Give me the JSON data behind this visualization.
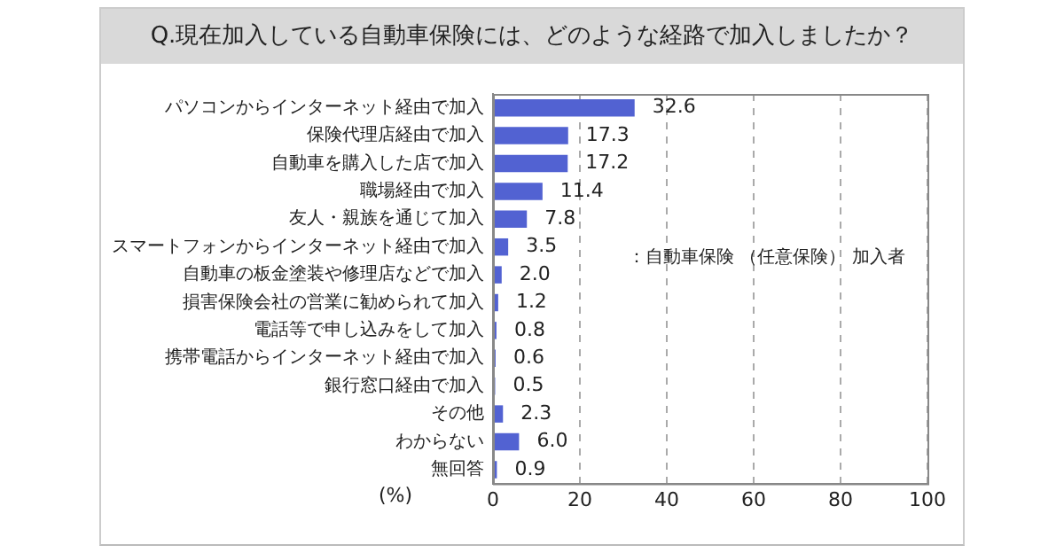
{
  "chart_data": {
    "type": "bar",
    "orientation": "horizontal",
    "title": "Q.現在加入している自動車保険には、どのような経路で加入しましたか？",
    "categories": [
      "パソコンからインターネット経由で加入",
      "保険代理店経由で加入",
      "自動車を購入した店で加入",
      "職場経由で加入",
      "友人・親族を通じて加入",
      "スマートフォンからインターネット経由で加入",
      "自動車の板金塗装や修理店などで加入",
      "損害保険会社の営業に勧められて加入",
      "電話等で申し込みをして加入",
      "携帯電話からインターネット経由で加入",
      "銀行窓口経由で加入",
      "その他",
      "わからない",
      "無回答"
    ],
    "values": [
      32.6,
      17.3,
      17.2,
      11.4,
      7.8,
      3.5,
      2.0,
      1.2,
      0.8,
      0.6,
      0.5,
      2.3,
      6.0,
      0.9
    ],
    "value_labels": [
      "32.6",
      "17.3",
      "17.2",
      "11.4",
      "7.8",
      "3.5",
      "2.0",
      "1.2",
      "0.8",
      "0.6",
      "0.5",
      "2.3",
      "6.0",
      "0.9"
    ],
    "color": "#5262d2",
    "xlim": [
      0,
      100
    ],
    "xticks": [
      0,
      20,
      40,
      60,
      80,
      100
    ],
    "xlabel": "(%)",
    "grid": "x",
    "annotations": [
      "：自動車保険 （任意保険） 加入者"
    ]
  }
}
